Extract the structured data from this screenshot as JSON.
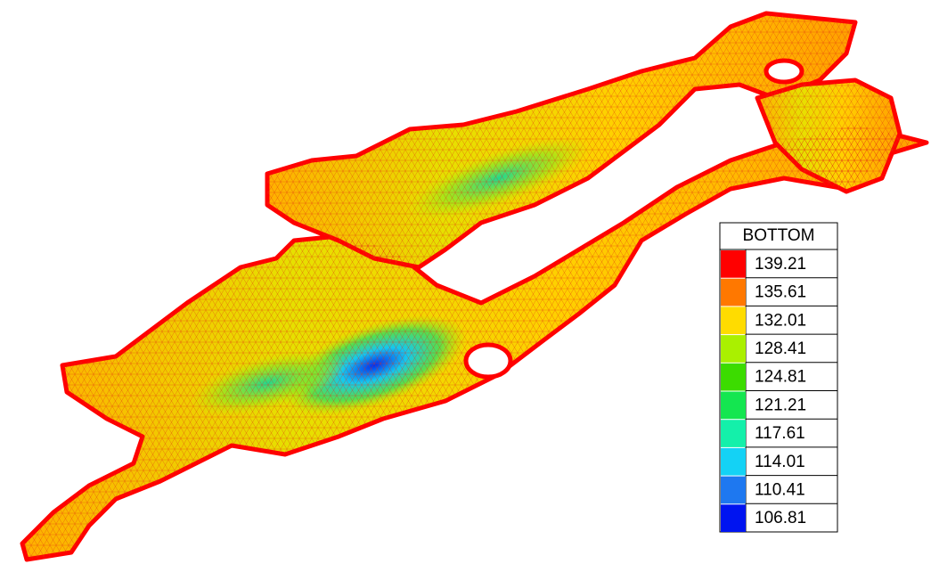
{
  "legend": {
    "title": "BOTTOM",
    "entries": [
      {
        "value": 139.21,
        "color": "#ff0000"
      },
      {
        "value": 135.61,
        "color": "#ff7800"
      },
      {
        "value": 132.01,
        "color": "#ffdc00"
      },
      {
        "value": 128.41,
        "color": "#aaf000"
      },
      {
        "value": 124.81,
        "color": "#3cdc00"
      },
      {
        "value": 121.21,
        "color": "#14e650"
      },
      {
        "value": 117.61,
        "color": "#14f0aa"
      },
      {
        "value": 114.01,
        "color": "#14d2f5"
      },
      {
        "value": 110.41,
        "color": "#1e78f0"
      },
      {
        "value": 106.81,
        "color": "#0014f0"
      }
    ]
  }
}
